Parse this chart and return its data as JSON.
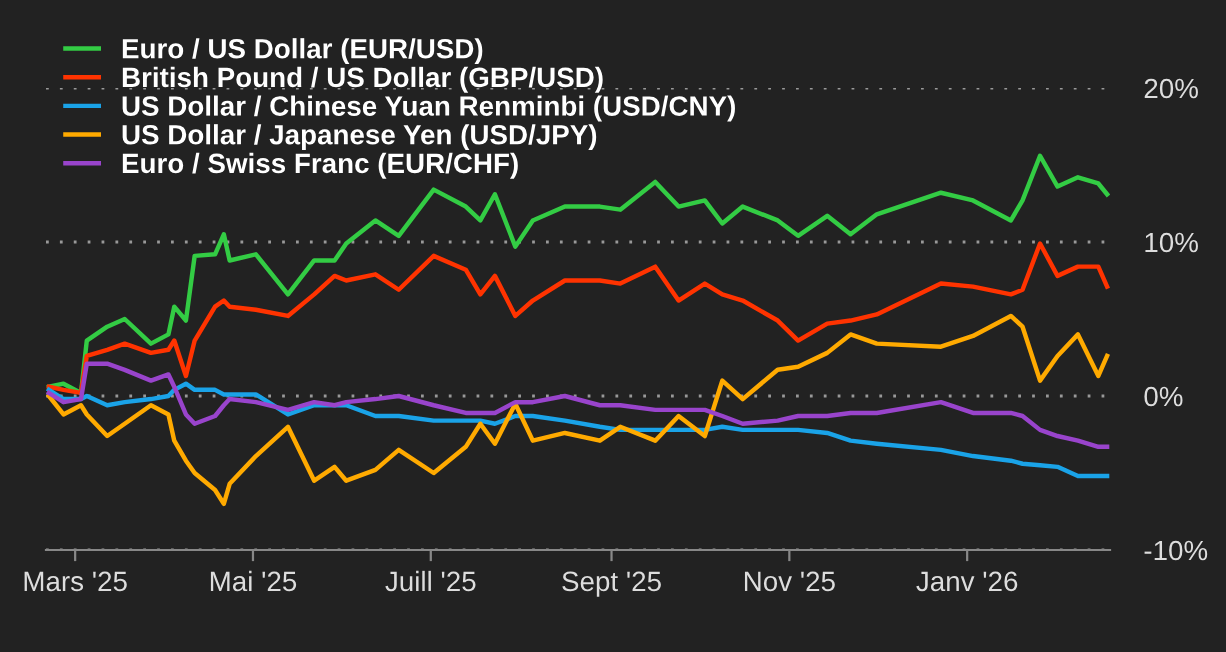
{
  "chart_data": {
    "type": "line",
    "x": [
      "2025-02-20",
      "2025-02-25",
      "2025-03-03",
      "2025-03-05",
      "2025-03-12",
      "2025-03-18",
      "2025-03-27",
      "2025-04-02",
      "2025-04-04",
      "2025-04-08",
      "2025-04-11",
      "2025-04-18",
      "2025-04-21",
      "2025-04-23",
      "2025-05-02",
      "2025-05-13",
      "2025-05-22",
      "2025-05-29",
      "2025-06-02",
      "2025-06-12",
      "2025-06-20",
      "2025-07-02",
      "2025-07-13",
      "2025-07-18",
      "2025-07-23",
      "2025-07-30",
      "2025-08-05",
      "2025-08-16",
      "2025-08-28",
      "2025-09-04",
      "2025-09-16",
      "2025-09-24",
      "2025-10-03",
      "2025-10-09",
      "2025-10-16",
      "2025-10-28",
      "2025-11-04",
      "2025-11-14",
      "2025-11-22",
      "2025-12-01",
      "2025-12-23",
      "2026-01-03",
      "2026-01-16",
      "2026-01-20",
      "2026-01-26",
      "2026-02-01",
      "2026-02-08",
      "2026-02-15",
      "2026-02-18"
    ],
    "series": [
      {
        "name": "Euro / US Dollar (EUR/USD)",
        "color": "#33cc44",
        "values": [
          0.6,
          0.8,
          0.2,
          3.6,
          4.5,
          5.0,
          3.4,
          4.0,
          5.8,
          4.9,
          9.1,
          9.2,
          10.5,
          8.8,
          9.2,
          6.6,
          8.8,
          8.8,
          9.9,
          11.4,
          10.4,
          13.4,
          12.3,
          11.4,
          13.1,
          9.7,
          11.4,
          12.3,
          12.3,
          12.1,
          13.9,
          12.3,
          12.7,
          11.2,
          12.3,
          11.4,
          10.4,
          11.7,
          10.5,
          11.8,
          13.2,
          12.7,
          11.4,
          12.7,
          15.6,
          13.6,
          14.2,
          13.8,
          13.1
        ]
      },
      {
        "name": "British Pound / US Dollar (GBP/USD)",
        "color": "#ff3300",
        "values": [
          0.6,
          0.4,
          0.2,
          2.6,
          3.0,
          3.4,
          2.8,
          3.0,
          3.6,
          1.3,
          3.6,
          5.8,
          6.2,
          5.8,
          5.6,
          5.2,
          6.6,
          7.8,
          7.5,
          7.9,
          6.9,
          9.1,
          8.2,
          6.6,
          7.8,
          5.2,
          6.2,
          7.5,
          7.5,
          7.3,
          8.4,
          6.2,
          7.3,
          6.6,
          6.2,
          4.9,
          3.6,
          4.7,
          4.9,
          5.3,
          7.3,
          7.1,
          6.6,
          6.9,
          9.9,
          7.8,
          8.4,
          8.4,
          7.1
        ]
      },
      {
        "name": "US Dollar / Chinese Yuan Renminbi (USD/CNY)",
        "color": "#1aa3e8",
        "values": [
          0.4,
          -0.2,
          -0.2,
          0.0,
          -0.6,
          -0.4,
          -0.2,
          0.0,
          0.4,
          0.8,
          0.4,
          0.4,
          0.1,
          0.1,
          0.1,
          -1.2,
          -0.6,
          -0.6,
          -0.6,
          -1.3,
          -1.3,
          -1.6,
          -1.6,
          -1.6,
          -1.8,
          -1.3,
          -1.3,
          -1.6,
          -2.0,
          -2.2,
          -2.2,
          -2.2,
          -2.2,
          -2.0,
          -2.2,
          -2.2,
          -2.2,
          -2.4,
          -2.9,
          -3.1,
          -3.5,
          -3.9,
          -4.2,
          -4.4,
          -4.5,
          -4.6,
          -5.2,
          -5.2,
          -5.2
        ]
      },
      {
        "name": "US Dollar / Japanese Yen (USD/JPY)",
        "color": "#ffaa00",
        "values": [
          0.0,
          -1.2,
          -0.6,
          -1.2,
          -2.6,
          -1.8,
          -0.6,
          -1.2,
          -2.9,
          -4.2,
          -5.0,
          -6.1,
          -7.0,
          -5.7,
          -3.9,
          -2.0,
          -5.5,
          -4.6,
          -5.5,
          -4.8,
          -3.5,
          -5.0,
          -3.3,
          -1.8,
          -3.1,
          -0.5,
          -2.9,
          -2.4,
          -2.9,
          -2.0,
          -2.9,
          -1.3,
          -2.6,
          1.0,
          -0.2,
          1.7,
          1.9,
          2.8,
          4.0,
          3.4,
          3.2,
          3.9,
          5.2,
          4.5,
          1.0,
          2.6,
          4.0,
          1.3,
          2.6
        ]
      },
      {
        "name": "Euro / Swiss Franc (EUR/CHF)",
        "color": "#9944cc",
        "values": [
          0.2,
          -0.4,
          -0.2,
          2.1,
          2.1,
          1.7,
          1.0,
          1.4,
          0.6,
          -1.2,
          -1.8,
          -1.3,
          -0.6,
          -0.2,
          -0.4,
          -0.9,
          -0.4,
          -0.6,
          -0.4,
          -0.2,
          0.0,
          -0.6,
          -1.1,
          -1.1,
          -1.1,
          -0.4,
          -0.4,
          0.0,
          -0.6,
          -0.6,
          -0.9,
          -0.9,
          -0.9,
          -1.3,
          -1.8,
          -1.6,
          -1.3,
          -1.3,
          -1.1,
          -1.1,
          -0.4,
          -1.1,
          -1.1,
          -1.3,
          -2.2,
          -2.6,
          -2.9,
          -3.3,
          -3.3
        ]
      }
    ],
    "xlim": [
      "2025-02-19",
      "2026-02-19"
    ],
    "xticks": [
      {
        "value": "2025-03-01",
        "label": "Mars '25"
      },
      {
        "value": "2025-05-01",
        "label": "Mai '25"
      },
      {
        "value": "2025-07-01",
        "label": "Juill '25"
      },
      {
        "value": "2025-09-01",
        "label": "Sept '25"
      },
      {
        "value": "2025-11-01",
        "label": "Nov '25"
      },
      {
        "value": "2026-01-01",
        "label": "Janv '26"
      }
    ],
    "ylim": [
      -10,
      20
    ],
    "yticks": [
      {
        "value": -10,
        "label": "-10%"
      },
      {
        "value": 0,
        "label": "0%"
      },
      {
        "value": 10,
        "label": "10%"
      },
      {
        "value": 20,
        "label": "20%"
      }
    ],
    "grid": "y",
    "legend": "top left",
    "marker": "none",
    "line_style": "solid"
  }
}
